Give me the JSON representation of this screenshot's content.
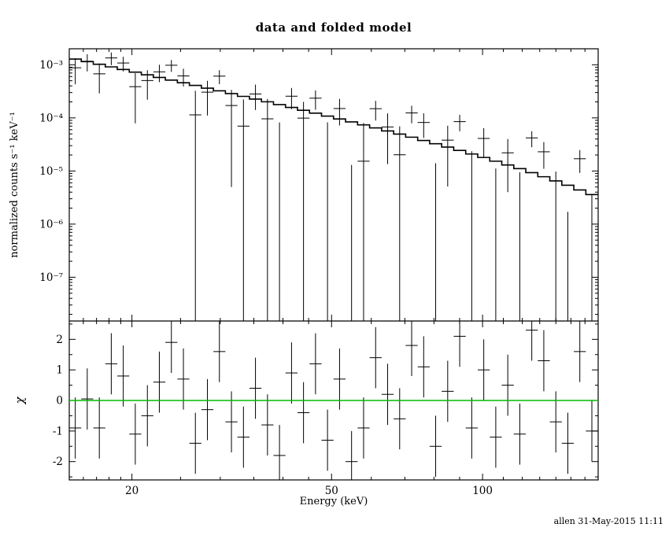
{
  "title": "data and folded model",
  "footer": "allen 31-May-2015 11:11",
  "chart_data": {
    "type": "scatter",
    "description": "XSPEC two-panel plot: folded spectrum with model (top, log-log) and chi residuals (bottom)",
    "x_axis": {
      "label": "Energy (keV)",
      "scale": "log",
      "range": [
        15,
        170
      ],
      "major_ticks": [
        20,
        50,
        100
      ],
      "major_tick_labels": [
        "20",
        "50",
        "100"
      ],
      "minor_ticks": [
        16,
        17,
        18,
        19,
        25,
        30,
        35,
        40,
        45,
        60,
        70,
        80,
        90,
        110,
        120,
        130,
        140,
        150,
        160
      ]
    },
    "top_panel": {
      "ylabel": "normalized counts s⁻¹ keV⁻¹",
      "scale": "log",
      "range": [
        1.5e-08,
        0.002
      ],
      "decade_ticks": [
        1e-07,
        1e-06,
        1e-05,
        0.0001,
        0.001
      ],
      "decade_tick_labels": [
        "10⁻⁷",
        "10⁻⁶",
        "10⁻⁵",
        "10⁻⁴",
        "10⁻³"
      ]
    },
    "bottom_panel": {
      "ylabel": "χ",
      "scale": "linear",
      "range": [
        -2.6,
        2.6
      ],
      "major_ticks": [
        -2,
        -1,
        0,
        1,
        2
      ],
      "major_tick_labels": [
        "-2",
        "-1",
        "0",
        "1",
        "2"
      ],
      "minor_ticks": [
        -2.5,
        -1.5,
        -0.5,
        0.5,
        1.5,
        2.5
      ],
      "zero_line_color": "#00bb00"
    },
    "series": {
      "bin_edge_ratio": 1.028,
      "chi_error": 1,
      "energy_kev": [
        15.42,
        16.29,
        17.22,
        18.19,
        19.22,
        20.31,
        21.47,
        22.68,
        23.97,
        25.33,
        26.76,
        28.28,
        29.88,
        31.58,
        33.37,
        35.26,
        37.26,
        39.37,
        41.61,
        43.96,
        46.45,
        49.08,
        51.87,
        54.81,
        57.92,
        61.21,
        64.68,
        68.35,
        72.22,
        76.32,
        80.63,
        85.21,
        90.04,
        95.15,
        100.55,
        106.25,
        112.27,
        118.64,
        125.35,
        132.46,
        139.97,
        147.9,
        156.28,
        165.15
      ],
      "model_counts": [
        0.001282,
        0.001145,
        0.001022,
        0.000913,
        0.000814,
        0.000726,
        0.000647,
        0.000577,
        0.000514,
        0.000458,
        0.000408,
        0.000363,
        0.000323,
        0.000287,
        0.000254,
        0.000226,
        0.000201,
        0.000178,
        0.000157,
        0.000139,
        0.000123,
        0.000108,
        9.55e-05,
        8.4e-05,
        7.38e-05,
        6.48e-05,
        5.67e-05,
        4.96e-05,
        4.33e-05,
        3.76e-05,
        3.26e-05,
        2.82e-05,
        2.44e-05,
        2.09e-05,
        1.8e-05,
        1.53e-05,
        1.3e-05,
        1.11e-05,
        9.3e-06,
        7.8e-06,
        6.5e-06,
        5.4e-06,
        4.4e-06,
        3.6e-06
      ],
      "data_counts": [
        0.000878,
        0.001166,
        0.000675,
        0.001344,
        0.00108,
        0.000387,
        0.000505,
        0.000736,
        0.00098,
        0.000617,
        0.000114,
        0.000305,
        0.000611,
        0.000171,
        7e-05,
        0.000282,
        9.6e-05,
        -3.8e-05,
        0.000256,
        9.9e-05,
        0.000235,
        -2.5e-06,
        0.00015,
        -5.8e-05,
        1.53e-05,
        0.000149,
        6.75e-05,
        2.02e-05,
        0.000124,
        8.2e-05,
        -2.2e-05,
        3.81e-05,
        8.5e-05,
        -2.5e-06,
        4.1e-05,
        -9.9e-06,
        2.2e-05,
        -6.5e-06,
        4.2e-05,
        2.3e-05,
        -1.2e-06,
        -7.5e-06,
        1.7e-05,
        -3e-06
      ],
      "data_error": [
        0.000449,
        0.000417,
        0.000386,
        0.000359,
        0.000332,
        0.000308,
        0.000285,
        0.000265,
        0.000245,
        0.000227,
        0.00021,
        0.000194,
        0.00018,
        0.000166,
        0.000153,
        0.000141,
        0.000131,
        0.00012,
        0.00011,
        0.000101,
        9.3e-05,
        8.5e-05,
        7.8e-05,
        7.1e-05,
        6.5e-05,
        6e-05,
        5.4e-05,
        4.9e-05,
        4.5e-05,
        4e-05,
        3.6e-05,
        3.3e-05,
        2.9e-05,
        2.6e-05,
        2.3e-05,
        2.1e-05,
        1.8e-05,
        1.6e-05,
        1.4e-05,
        1.2e-05,
        1.1e-05,
        9.2e-06,
        7.8e-06,
        6.6e-06
      ],
      "chi": [
        -0.9,
        0.05,
        -0.9,
        1.2,
        0.8,
        -1.1,
        -0.5,
        0.6,
        1.9,
        0.7,
        -1.4,
        -0.3,
        1.6,
        -0.7,
        -1.2,
        0.4,
        -0.8,
        -1.8,
        0.9,
        -0.4,
        1.2,
        -1.3,
        0.7,
        -2.0,
        -0.9,
        1.4,
        0.2,
        -0.6,
        1.8,
        1.1,
        -1.5,
        0.3,
        2.1,
        -0.9,
        1.0,
        -1.2,
        0.5,
        -1.1,
        2.3,
        1.3,
        -0.7,
        -1.4,
        1.6,
        -1.0
      ]
    }
  }
}
